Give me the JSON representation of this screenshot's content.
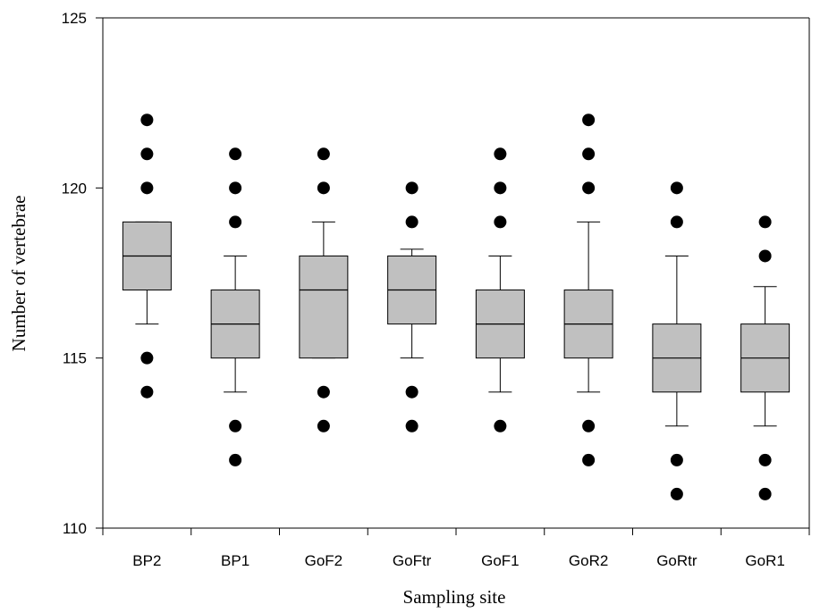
{
  "chart_data": {
    "type": "boxplot",
    "title": "",
    "xlabel": "Sampling site",
    "ylabel": "Number of vertebrae",
    "ylim": [
      110,
      125
    ],
    "yticks": [
      110,
      115,
      120,
      125
    ],
    "grid": false,
    "legend": "none",
    "box_color": "#c0c0c0",
    "categories": [
      "BP2",
      "BP1",
      "GoF2",
      "GoFtr",
      "GoF1",
      "GoR2",
      "GoRtr",
      "GoR1"
    ],
    "boxes": [
      {
        "site": "BP2",
        "whisker_low": 116,
        "q1": 117,
        "median": 118,
        "q3": 119,
        "whisker_high": 119,
        "outliers": [
          114,
          115,
          120,
          121,
          122
        ]
      },
      {
        "site": "BP1",
        "whisker_low": 114,
        "q1": 115,
        "median": 116,
        "q3": 117,
        "whisker_high": 118,
        "outliers": [
          112,
          113,
          119,
          120,
          121
        ]
      },
      {
        "site": "GoF2",
        "whisker_low": 115,
        "q1": 115,
        "median": 117,
        "q3": 118,
        "whisker_high": 119,
        "outliers": [
          113,
          114,
          120,
          121
        ]
      },
      {
        "site": "GoFtr",
        "whisker_low": 115,
        "q1": 116,
        "median": 117,
        "q3": 118,
        "whisker_high": 118.2,
        "outliers": [
          113,
          114,
          119,
          120
        ]
      },
      {
        "site": "GoF1",
        "whisker_low": 114,
        "q1": 115,
        "median": 116,
        "q3": 117,
        "whisker_high": 118,
        "outliers": [
          113,
          119,
          120,
          121
        ]
      },
      {
        "site": "GoR2",
        "whisker_low": 114,
        "q1": 115,
        "median": 116,
        "q3": 117,
        "whisker_high": 119,
        "outliers": [
          112,
          113,
          120,
          121,
          122
        ]
      },
      {
        "site": "GoRtr",
        "whisker_low": 113,
        "q1": 114,
        "median": 115,
        "q3": 116,
        "whisker_high": 118,
        "outliers": [
          111,
          112,
          119,
          120
        ]
      },
      {
        "site": "GoR1",
        "whisker_low": 113,
        "q1": 114,
        "median": 115,
        "q3": 116,
        "whisker_high": 117.1,
        "outliers": [
          111,
          112,
          118,
          119
        ]
      }
    ]
  }
}
